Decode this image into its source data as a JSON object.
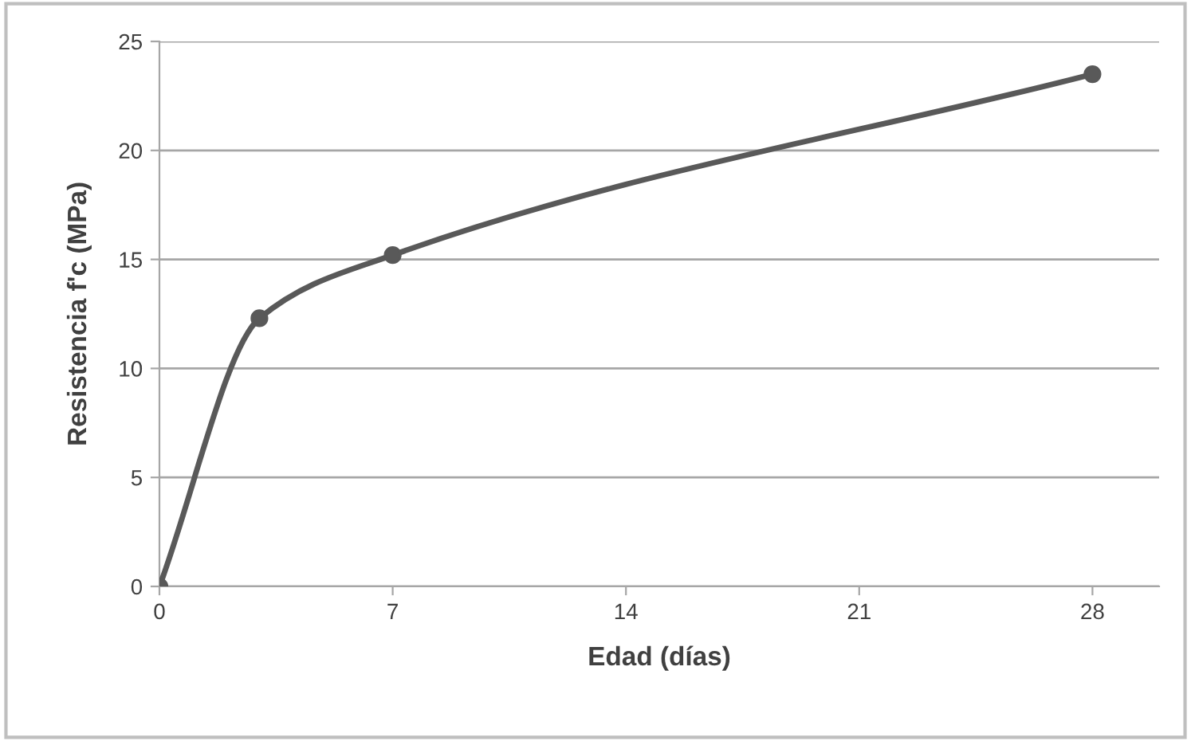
{
  "chart_data": {
    "type": "line",
    "xlabel": "Edad (días)",
    "ylabel": "Resistencia f'c (MPa)",
    "x": [
      0,
      3,
      7,
      28
    ],
    "series": [
      {
        "color": "#595959",
        "values": [
          0,
          12.3,
          15.2,
          23.5
        ]
      }
    ],
    "xlim": [
      0,
      30
    ],
    "xticks": [
      0,
      7,
      14,
      21,
      28
    ],
    "ylim": [
      0,
      25
    ],
    "yticks": [
      0,
      5,
      10,
      15,
      20,
      25
    ],
    "grid": "y",
    "marker": "circle",
    "line_style": "solid"
  }
}
